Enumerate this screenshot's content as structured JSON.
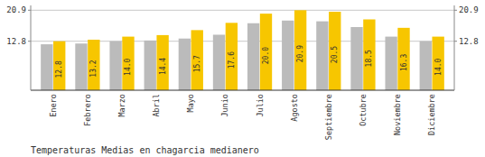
{
  "chart_data": {
    "type": "bar",
    "title": "Temperaturas Medias en chagarcia medianero",
    "categories": [
      "Enero",
      "Febrero",
      "Marzo",
      "Abril",
      "Mayo",
      "Junio",
      "Julio",
      "Agosto",
      "Septiembre",
      "Octubre",
      "Noviembre",
      "Diciembre"
    ],
    "series": [
      {
        "color": "#BBBBBB",
        "values": [
          12.0,
          12.2,
          12.8,
          13.0,
          13.5,
          14.5,
          17.5,
          18.2,
          18.0,
          16.5,
          14.0,
          12.8
        ]
      },
      {
        "color": "#F7C600",
        "values": [
          12.8,
          13.2,
          14.0,
          14.4,
          15.7,
          17.6,
          20.0,
          20.9,
          20.5,
          18.5,
          16.3,
          14.0
        ],
        "data_labels": true,
        "value_labels": [
          "12.8",
          "13.2",
          "14.0",
          "14.4",
          "15.7",
          "17.6",
          "20.0",
          "20.9",
          "20.5",
          "18.5",
          "16.3",
          "14.0"
        ]
      }
    ],
    "ylim": [
      0,
      22.154
    ],
    "yticks": [
      12.8,
      20.9
    ],
    "y2lim": [
      0,
      22.154
    ],
    "y2ticks": [
      12.8,
      20.9
    ],
    "grid": true
  }
}
